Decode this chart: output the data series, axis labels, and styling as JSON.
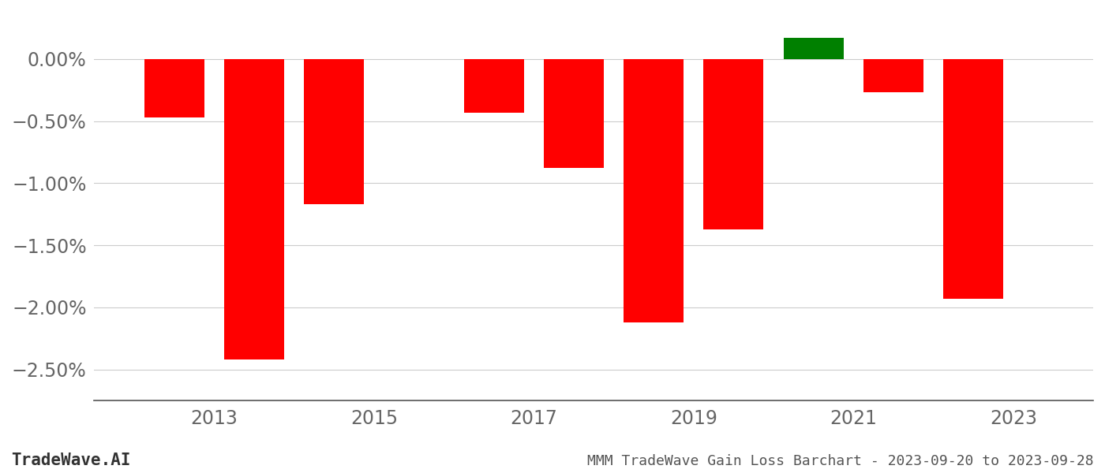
{
  "years": [
    2012.5,
    2013.5,
    2014.5,
    2016.5,
    2017.5,
    2018.5,
    2019.5,
    2020.5,
    2021.5,
    2022.5
  ],
  "values": [
    -0.47,
    -2.42,
    -1.17,
    -0.43,
    -0.88,
    -2.12,
    -1.37,
    0.17,
    -0.27,
    -1.93
  ],
  "bar_colors": [
    "#ff0000",
    "#ff0000",
    "#ff0000",
    "#ff0000",
    "#ff0000",
    "#ff0000",
    "#ff0000",
    "#008000",
    "#ff0000",
    "#ff0000"
  ],
  "title": "MMM TradeWave Gain Loss Barchart - 2023-09-20 to 2023-09-28",
  "watermark": "TradeWave.AI",
  "xlim": [
    2011.5,
    2024.0
  ],
  "ylim": [
    -2.75,
    0.38
  ],
  "ytick_values": [
    0.0,
    -0.5,
    -1.0,
    -1.5,
    -2.0,
    -2.5
  ],
  "xtick_values": [
    2013,
    2015,
    2017,
    2019,
    2021,
    2023
  ],
  "background_color": "#ffffff",
  "grid_color": "#cccccc",
  "bar_width": 0.75,
  "tick_fontsize": 17,
  "footer_fontsize_watermark": 15,
  "footer_fontsize_title": 13
}
